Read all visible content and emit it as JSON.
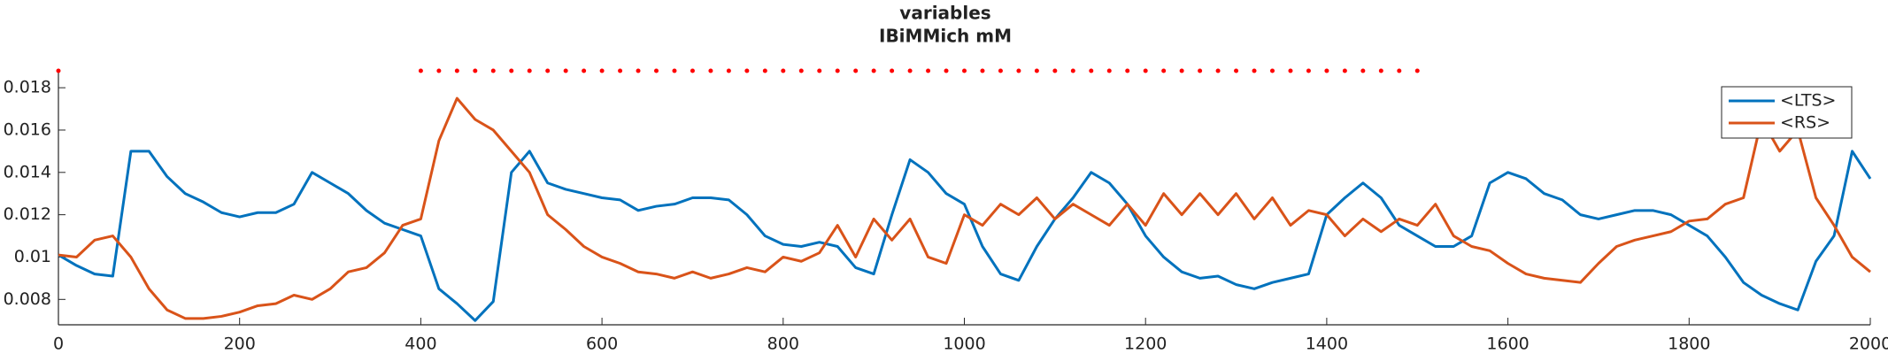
{
  "chart_data": {
    "type": "line",
    "title": "variables",
    "subtitle": "IBiMMich mM",
    "x": [
      0,
      20,
      40,
      60,
      80,
      100,
      120,
      140,
      160,
      180,
      200,
      220,
      240,
      260,
      280,
      300,
      320,
      340,
      360,
      380,
      400,
      420,
      440,
      460,
      480,
      500,
      520,
      540,
      560,
      580,
      600,
      620,
      640,
      660,
      680,
      700,
      720,
      740,
      760,
      780,
      800,
      820,
      840,
      860,
      880,
      900,
      920,
      940,
      960,
      980,
      1000,
      1020,
      1040,
      1060,
      1080,
      1100,
      1120,
      1140,
      1160,
      1180,
      1200,
      1220,
      1240,
      1260,
      1280,
      1300,
      1320,
      1340,
      1360,
      1380,
      1400,
      1420,
      1440,
      1460,
      1480,
      1500,
      1520,
      1540,
      1560,
      1580,
      1600,
      1620,
      1640,
      1660,
      1680,
      1700,
      1720,
      1740,
      1760,
      1780,
      1800,
      1820,
      1840,
      1860,
      1880,
      1900,
      1920,
      1940,
      1960,
      1980,
      2000
    ],
    "series": [
      {
        "name": "<LTS>",
        "color": "#0072bd",
        "values": [
          0.0101,
          0.0096,
          0.0092,
          0.0091,
          0.015,
          0.015,
          0.0138,
          0.013,
          0.0126,
          0.0121,
          0.0119,
          0.0121,
          0.0121,
          0.0125,
          0.014,
          0.0135,
          0.013,
          0.0122,
          0.0116,
          0.0113,
          0.011,
          0.0085,
          0.0078,
          0.007,
          0.0079,
          0.014,
          0.015,
          0.0135,
          0.0132,
          0.013,
          0.0128,
          0.0127,
          0.0122,
          0.0124,
          0.0125,
          0.0128,
          0.0128,
          0.0127,
          0.012,
          0.011,
          0.0106,
          0.0105,
          0.0107,
          0.0105,
          0.0095,
          0.0092,
          0.012,
          0.0146,
          0.014,
          0.013,
          0.0125,
          0.0105,
          0.0092,
          0.0089,
          0.0105,
          0.0118,
          0.0128,
          0.014,
          0.0135,
          0.0125,
          0.011,
          0.01,
          0.0093,
          0.009,
          0.0091,
          0.0087,
          0.0085,
          0.0088,
          0.009,
          0.0092,
          0.012,
          0.0128,
          0.0135,
          0.0128,
          0.0115,
          0.011,
          0.0105,
          0.0105,
          0.011,
          0.0135,
          0.014,
          0.0137,
          0.013,
          0.0127,
          0.012,
          0.0118,
          0.012,
          0.0122,
          0.0122,
          0.012,
          0.0115,
          0.011,
          0.01,
          0.0088,
          0.0082,
          0.0078,
          0.0075,
          0.0098,
          0.011,
          0.015,
          0.0137
        ]
      },
      {
        "name": "<RS>",
        "color": "#d95319",
        "values": [
          0.0101,
          0.01,
          0.0108,
          0.011,
          0.01,
          0.0085,
          0.0075,
          0.0071,
          0.0071,
          0.0072,
          0.0074,
          0.0077,
          0.0078,
          0.0082,
          0.008,
          0.0085,
          0.0093,
          0.0095,
          0.0102,
          0.0115,
          0.0118,
          0.0155,
          0.0175,
          0.0165,
          0.016,
          0.015,
          0.014,
          0.012,
          0.0113,
          0.0105,
          0.01,
          0.0097,
          0.0093,
          0.0092,
          0.009,
          0.0093,
          0.009,
          0.0092,
          0.0095,
          0.0093,
          0.01,
          0.0098,
          0.0102,
          0.0115,
          0.01,
          0.0118,
          0.0108,
          0.0118,
          0.01,
          0.0097,
          0.012,
          0.0115,
          0.0125,
          0.012,
          0.0128,
          0.0118,
          0.0125,
          0.012,
          0.0115,
          0.0125,
          0.0115,
          0.013,
          0.012,
          0.013,
          0.012,
          0.013,
          0.0118,
          0.0128,
          0.0115,
          0.0122,
          0.012,
          0.011,
          0.0118,
          0.0112,
          0.0118,
          0.0115,
          0.0125,
          0.011,
          0.0105,
          0.0103,
          0.0097,
          0.0092,
          0.009,
          0.0089,
          0.0088,
          0.0097,
          0.0105,
          0.0108,
          0.011,
          0.0112,
          0.0117,
          0.0118,
          0.0125,
          0.0128,
          0.0165,
          0.015,
          0.016,
          0.0128,
          0.0115,
          0.01,
          0.0093
        ]
      }
    ],
    "events": {
      "color": "#ff0000",
      "value": 0.0188,
      "x": [
        0,
        400,
        420,
        440,
        460,
        480,
        500,
        520,
        540,
        560,
        580,
        600,
        620,
        640,
        660,
        680,
        700,
        720,
        740,
        760,
        780,
        800,
        820,
        840,
        860,
        880,
        900,
        920,
        940,
        960,
        980,
        1000,
        1020,
        1040,
        1060,
        1080,
        1100,
        1120,
        1140,
        1160,
        1180,
        1200,
        1220,
        1240,
        1260,
        1280,
        1300,
        1320,
        1340,
        1360,
        1380,
        1400,
        1420,
        1440,
        1460,
        1480,
        1500
      ]
    },
    "xlim": [
      0,
      2000
    ],
    "xticks": [
      0,
      200,
      400,
      600,
      800,
      1000,
      1200,
      1400,
      1600,
      1800,
      2000
    ],
    "ylim": [
      0.0068,
      0.0188
    ],
    "yticks": [
      0.008,
      0.01,
      0.012,
      0.014,
      0.016,
      0.018
    ],
    "legend": "upper right",
    "grid": false
  }
}
